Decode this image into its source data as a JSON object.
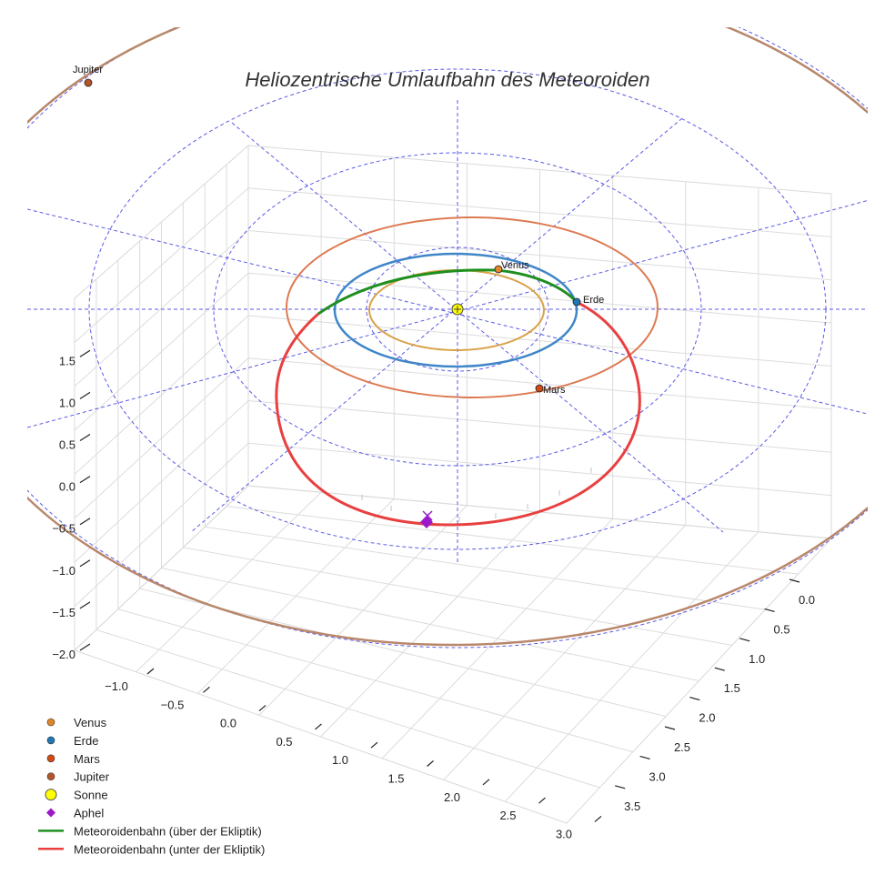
{
  "chart_data": {
    "type": "scatter",
    "title": "Heliozentrische Umlaufbahn des Meteoroiden",
    "xlabel": "",
    "ylabel": "",
    "zlabel": "",
    "xlim": [
      -1.0,
      3.0
    ],
    "ylim": [
      0.0,
      3.5
    ],
    "zlim": [
      -2.0,
      1.5
    ],
    "x_ticks": [
      "−1.0",
      "−0.5",
      "0.0",
      "0.5",
      "1.0",
      "1.5",
      "2.0",
      "2.5",
      "3.0"
    ],
    "y_ticks": [
      "0.0",
      "0.5",
      "1.0",
      "1.5",
      "2.0",
      "2.5",
      "3.0",
      "3.5"
    ],
    "z_ticks": [
      "−2.0",
      "−1.5",
      "−1.0",
      "−0.5",
      "0.0",
      "0.5",
      "1.0",
      "1.5"
    ],
    "planet_labels": [
      "Venus",
      "Erde",
      "Mars",
      "Jupiter"
    ],
    "series": [
      {
        "name": "Venus",
        "marker": "circle",
        "color": "#e0852b",
        "orbit_color": "#d9a24a",
        "orbit_radius_au": 0.72
      },
      {
        "name": "Erde",
        "marker": "circle",
        "color": "#1f77b4",
        "orbit_color": "#3f86c8",
        "orbit_radius_au": 1.0
      },
      {
        "name": "Mars",
        "marker": "circle",
        "color": "#d44a15",
        "orbit_color": "#dd7a52",
        "orbit_radius_au": 1.52
      },
      {
        "name": "Jupiter",
        "marker": "circle",
        "color": "#b5562a",
        "orbit_color": "#b8876a",
        "orbit_radius_au": 5.2
      },
      {
        "name": "Sonne",
        "marker": "circle",
        "color": "#ffff00"
      },
      {
        "name": "Aphel",
        "marker": "diamond",
        "color": "#9c19c9"
      },
      {
        "name": "Meteoroidenbahn (über der Ekliptik)",
        "marker": "line",
        "color": "#1f8f1f"
      },
      {
        "name": "Meteoroidenbahn (unter der Ekliptik)",
        "marker": "line",
        "color": "#e84040"
      }
    ],
    "grid": true,
    "legend": "bottom-left"
  }
}
